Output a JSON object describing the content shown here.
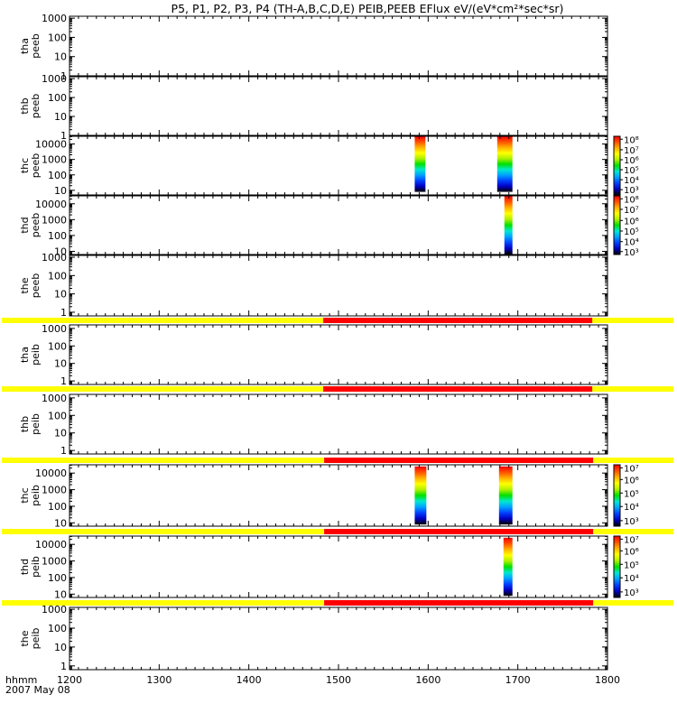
{
  "chart_data": {
    "type": "heatmap",
    "title": "P5, P1, P2, P3, P4 (TH-A,B,C,D,E) PEIB,PEEB EFlux eV/(eV*cm²*sec*sr)",
    "x_axis": {
      "ticks": [
        "1200",
        "1300",
        "1400",
        "1500",
        "1600",
        "1700",
        "1800"
      ],
      "range": [
        1200,
        1800
      ],
      "label_line1": "hhmm",
      "label_line2": "2007 May 08"
    },
    "colorscale": [
      "#000000",
      "#0000c0",
      "#0040ff",
      "#00a0ff",
      "#00e8d0",
      "#00e000",
      "#b0f000",
      "#ffff00",
      "#ffb000",
      "#ff5000",
      "#ff0000"
    ],
    "panels": [
      {
        "id": "tha-peeb",
        "line1": "tha",
        "line2": "peeb",
        "yticks": [
          "1",
          "10",
          "100",
          "1000"
        ],
        "ymin_exp": 0,
        "ymax_exp": 3.1,
        "colorbar": null,
        "bar": null,
        "blocks": []
      },
      {
        "id": "thb-peeb",
        "line1": "thb",
        "line2": "peeb",
        "yticks": [
          "1",
          "10",
          "100",
          "1000"
        ],
        "ymin_exp": 0,
        "ymax_exp": 3.1,
        "colorbar": null,
        "bar": null,
        "blocks": []
      },
      {
        "id": "thc-peeb",
        "line1": "thc",
        "line2": "peeb",
        "yticks": [
          "10",
          "100",
          "1000",
          "10000"
        ],
        "ymin_exp": 0.7,
        "ymax_exp": 4.5,
        "colorbar": {
          "labels": [
            "10³",
            "10⁴",
            "10⁵",
            "10⁶",
            "10⁷",
            "10⁸"
          ],
          "pos": [
            0.09,
            0.26,
            0.43,
            0.6,
            0.77,
            0.95
          ]
        },
        "bar": null,
        "blocks": [
          {
            "x0": 1585,
            "x1": 1597,
            "y0_exp": 0.9,
            "y1_exp": 4.5
          },
          {
            "x0": 1677,
            "x1": 1694,
            "y0_exp": 0.9,
            "y1_exp": 4.5
          }
        ]
      },
      {
        "id": "thd-peeb",
        "line1": "thd",
        "line2": "peeb",
        "yticks": [
          "10",
          "100",
          "1000",
          "10000"
        ],
        "ymin_exp": 0.8,
        "ymax_exp": 4.5,
        "colorbar": {
          "labels": [
            "10³",
            "10⁴",
            "10⁵",
            "10⁶",
            "10⁷",
            "10⁸"
          ],
          "pos": [
            0.05,
            0.22,
            0.4,
            0.58,
            0.77,
            0.95
          ]
        },
        "bar": null,
        "blocks": [
          {
            "x0": 1685,
            "x1": 1694,
            "y0_exp": 0.8,
            "y1_exp": 4.5
          }
        ]
      },
      {
        "id": "the-peeb",
        "line1": "the",
        "line2": "peeb",
        "yticks": [
          "1",
          "10",
          "100",
          "1000"
        ],
        "ymin_exp": -0.2,
        "ymax_exp": 3.1,
        "colorbar": null,
        "bar": null,
        "blocks": []
      },
      {
        "id": "tha-peib",
        "line1": "tha",
        "line2": "peib",
        "yticks": [
          "1",
          "10",
          "100",
          "1000"
        ],
        "ymin_exp": -0.2,
        "ymax_exp": 3.2,
        "colorbar": null,
        "bar": {
          "split": 1483,
          "red_end": 1783
        },
        "blocks": []
      },
      {
        "id": "thb-peib",
        "line1": "thb",
        "line2": "peib",
        "yticks": [
          "1",
          "10",
          "100",
          "1000"
        ],
        "ymin_exp": -0.2,
        "ymax_exp": 3.2,
        "colorbar": null,
        "bar": {
          "split": 1483,
          "red_end": 1783
        },
        "blocks": []
      },
      {
        "id": "thc-peib",
        "line1": "thc",
        "line2": "peib",
        "yticks": [
          "10",
          "100",
          "1000",
          "10000"
        ],
        "ymin_exp": 0.8,
        "ymax_exp": 4.5,
        "colorbar": {
          "labels": [
            "10³",
            "10⁴",
            "10⁵",
            "10⁶",
            "10⁷"
          ],
          "pos": [
            0.09,
            0.32,
            0.54,
            0.76,
            0.95
          ]
        },
        "bar": {
          "split": 1484,
          "red_end": 1784
        },
        "blocks": [
          {
            "x0": 1585,
            "x1": 1598,
            "y0_exp": 0.9,
            "y1_exp": 4.4
          },
          {
            "x0": 1679,
            "x1": 1694,
            "y0_exp": 0.9,
            "y1_exp": 4.4
          }
        ]
      },
      {
        "id": "thd-peib",
        "line1": "thd",
        "line2": "peib",
        "yticks": [
          "10",
          "100",
          "1000",
          "10000"
        ],
        "ymin_exp": 0.8,
        "ymax_exp": 4.5,
        "colorbar": {
          "labels": [
            "10³",
            "10⁴",
            "10⁵",
            "10⁶",
            "10⁷"
          ],
          "pos": [
            0.09,
            0.32,
            0.54,
            0.76,
            0.95
          ]
        },
        "bar": {
          "split": 1484,
          "red_end": 1784
        },
        "blocks": [
          {
            "x0": 1684,
            "x1": 1694,
            "y0_exp": 0.9,
            "y1_exp": 4.4
          }
        ]
      },
      {
        "id": "the-peib",
        "line1": "the",
        "line2": "peib",
        "yticks": [
          "1",
          "10",
          "100",
          "1000"
        ],
        "ymin_exp": -0.2,
        "ymax_exp": 3.1,
        "colorbar": null,
        "bar": {
          "split": 1484,
          "red_end": 1784
        },
        "blocks": []
      }
    ]
  }
}
